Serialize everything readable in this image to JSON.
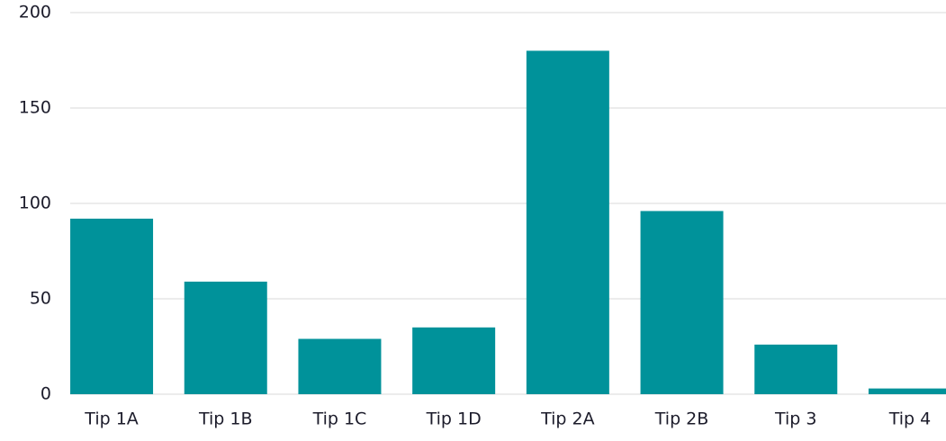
{
  "chart_data": {
    "type": "bar",
    "categories": [
      "Tip 1A",
      "Tip 1B",
      "Tip 1C",
      "Tip 1D",
      "Tip 2A",
      "Tip 2B",
      "Tip 3",
      "Tip 4"
    ],
    "values": [
      92,
      59,
      29,
      35,
      180,
      96,
      26,
      3
    ],
    "color": "#00929a",
    "ylim": [
      0,
      200
    ],
    "yticks": [
      0,
      50,
      100,
      150,
      200
    ],
    "grid": true
  }
}
